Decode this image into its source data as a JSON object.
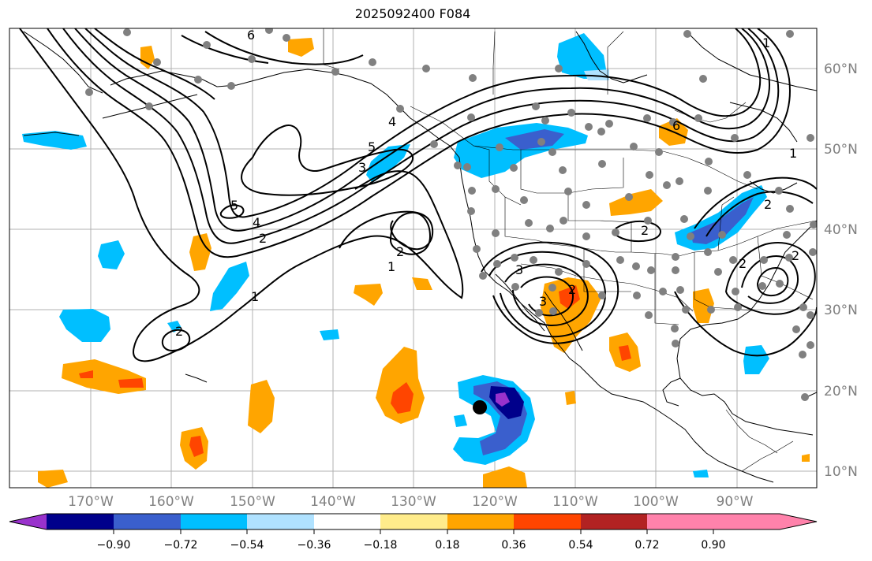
{
  "title": "2025092400 F084",
  "map": {
    "longitude_labels": [
      "170°W",
      "160°W",
      "150°W",
      "140°W",
      "130°W",
      "120°W",
      "110°W",
      "100°W",
      "90°W"
    ],
    "latitude_labels": [
      "60°N",
      "50°N",
      "40°N",
      "30°N",
      "20°N",
      "10°N"
    ],
    "contour_labels": [
      "6",
      "5",
      "4",
      "3",
      "2",
      "1",
      "5",
      "4",
      "3",
      "2",
      "1",
      "2",
      "2",
      "1",
      "3",
      "2",
      "2",
      "6",
      "1",
      "2",
      "2"
    ],
    "colors": {
      "neg_090": "#9932cc",
      "neg_072": "#00008b",
      "neg_054": "#3a5fcd",
      "neg_036": "#00bfff",
      "neg_018": "#b0e2ff",
      "neutral": "#ffffff",
      "pos_018": "#ffec8b",
      "pos_036": "#ffa500",
      "pos_054": "#ff4500",
      "pos_072": "#b22222",
      "pos_090": "#ff82ab",
      "gray_dot": "#808080"
    }
  },
  "colorbar": {
    "tick_labels": [
      "−0.90",
      "−0.72",
      "−0.54",
      "−0.36",
      "−0.18",
      "0.18",
      "0.36",
      "0.54",
      "0.72",
      "0.90"
    ],
    "colors": [
      "#9932cc",
      "#00008b",
      "#3a5fcd",
      "#00bfff",
      "#b0e2ff",
      "#ffffff",
      "#ffec8b",
      "#ffa500",
      "#ff4500",
      "#b22222",
      "#ff82ab"
    ]
  }
}
